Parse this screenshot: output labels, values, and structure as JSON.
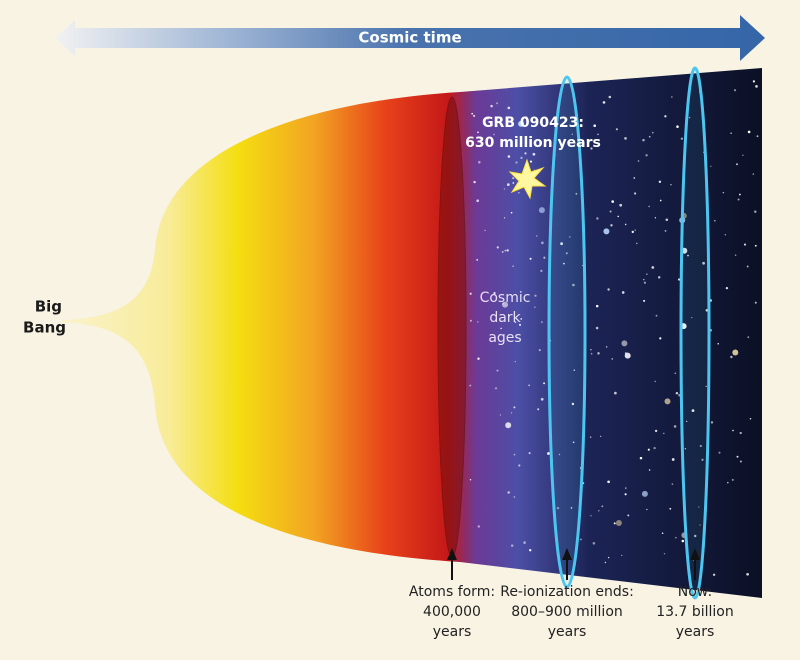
{
  "arrow": {
    "label": "Cosmic time"
  },
  "origin": {
    "lines": [
      "Big",
      "Bang"
    ]
  },
  "burst": {
    "lines": [
      "GRB 090423:",
      "630 million years"
    ]
  },
  "dark_ages": {
    "lines": [
      "Cosmic",
      "dark",
      "ages"
    ]
  },
  "milestones": [
    {
      "lines": [
        "Atoms form:",
        "400,000",
        "years"
      ]
    },
    {
      "lines": [
        "Re-ionization ends:",
        "800–900 million",
        "years"
      ]
    },
    {
      "lines": [
        "Now:",
        "13.7 billion",
        "years"
      ]
    }
  ]
}
